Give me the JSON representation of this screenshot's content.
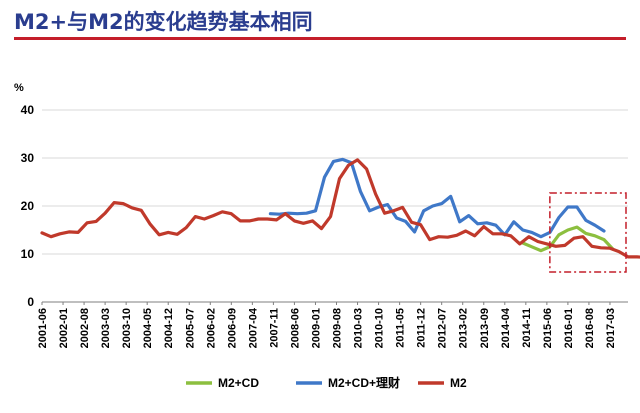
{
  "title": "M2+与M2的变化趋势基本相同",
  "colors": {
    "title": "#2a3d8f",
    "rule": "#c41e2a",
    "highlight_box": "#c41e2a",
    "series": [
      "#8cbf3f",
      "#3f78c8",
      "#c0392b"
    ]
  },
  "chart_data": {
    "type": "line",
    "title": "",
    "xlabel": "",
    "ylabel": "%",
    "ylim": [
      0,
      40
    ],
    "yticks": [
      0,
      10,
      20,
      30,
      40
    ],
    "grid": "horizontal",
    "legend": "bottom",
    "tick_labels": [
      "2001-06",
      "2002-01",
      "2002-08",
      "2003-03",
      "2003-10",
      "2004-05",
      "2004-12",
      "2005-07",
      "2006-02",
      "2006-09",
      "2007-04",
      "2007-11",
      "2008-06",
      "2009-01",
      "2009-08",
      "2010-03",
      "2010-10",
      "2011-05",
      "2011-12",
      "2012-07",
      "2013-02",
      "2013-09",
      "2014-04",
      "2014-11",
      "2015-06",
      "2016-01",
      "2016-08",
      "2017-03"
    ],
    "x_start": "2001-06",
    "x_step_months": 3,
    "series": [
      {
        "name": "M2+CD",
        "start": "2014-10",
        "values": [
          12.3,
          11.5,
          10.7,
          11.5,
          14.0,
          15.0,
          15.6,
          14.3,
          13.8,
          13.0,
          11.0
        ]
      },
      {
        "name": "M2+CD+理财",
        "start": "2007-10",
        "values": [
          18.4,
          18.3,
          18.5,
          18.4,
          18.5,
          19.0,
          26.0,
          29.3,
          29.7,
          29.0,
          23.0,
          19.0,
          19.8,
          20.3,
          17.5,
          16.8,
          14.6,
          19.0,
          20.0,
          20.5,
          22.0,
          16.7,
          18.0,
          16.3,
          16.5,
          16.0,
          14.0,
          16.7,
          15.0,
          14.5,
          13.6,
          14.5,
          17.6,
          19.8,
          19.8,
          17.0,
          16.0,
          14.8
        ]
      },
      {
        "name": "M2",
        "start": "2001-06",
        "values": [
          14.4,
          13.6,
          14.2,
          14.6,
          14.5,
          16.5,
          16.8,
          18.5,
          20.7,
          20.5,
          19.6,
          19.1,
          16.2,
          14.0,
          14.5,
          14.1,
          15.5,
          17.8,
          17.3,
          18.0,
          18.8,
          18.4,
          16.9,
          16.9,
          17.3,
          17.3,
          17.1,
          18.4,
          16.9,
          16.4,
          16.9,
          15.3,
          17.8,
          25.7,
          28.5,
          29.6,
          27.7,
          22.5,
          18.5,
          19.0,
          19.7,
          16.6,
          16.1,
          13.0,
          13.6,
          13.5,
          13.9,
          14.8,
          13.8,
          15.7,
          14.2,
          14.2,
          13.8,
          12.1,
          13.6,
          12.6,
          12.1,
          11.6,
          11.8,
          13.3,
          13.6,
          11.6,
          11.3,
          11.2,
          10.5,
          9.4,
          9.4,
          9.3
        ]
      }
    ]
  }
}
